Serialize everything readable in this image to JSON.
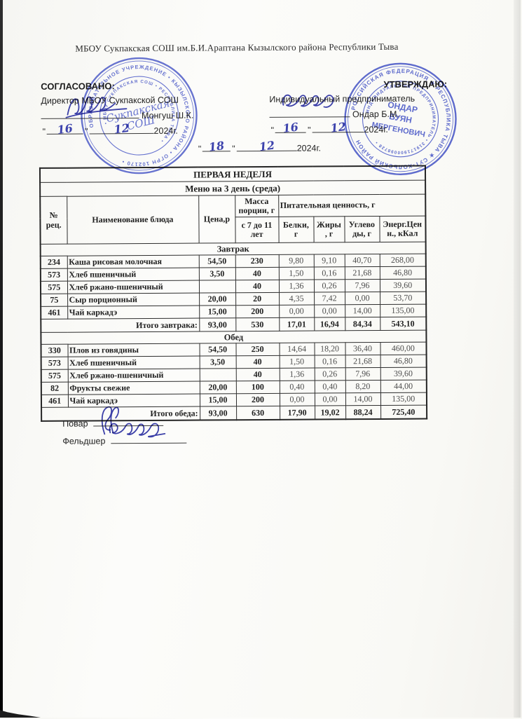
{
  "glyphs": {
    "quote": "\""
  },
  "document": {
    "school_header": "МБОУ Сукпакская СОШ им.Б.И.Араптана Кызылского района Республики Тыва",
    "agreed": {
      "title": "СОГЛАСОВАНО:",
      "role": "Директор МБОУ Сукпакской СОШ",
      "signer": "Монгуш Ш.К.",
      "date_day": "16",
      "date_month": "12",
      "date_year": "2024г."
    },
    "approved": {
      "title": "УТВЕРЖДАЮ:",
      "role": "Индивидуальный предприниматель",
      "signer": "Ондар Б.М.",
      "date_day": "16",
      "date_month": "12",
      "date_year": "2024г."
    },
    "center_date": {
      "day": "18",
      "month": "12",
      "year": "2024г."
    },
    "footer": {
      "cook_label": "Повар",
      "feldsher_label": "Фельдшер"
    }
  },
  "stamps": {
    "left": {
      "outer_ring": "ОБРАЗОВАТЕЛЬНОЕ УЧРЕЖДЕНИЕ • КЫЗЫЛСКОГО РАЙОНА • ОГРН 102170 •",
      "inner_ring": "• МБОУ СУКПАКСКАЯ СОШ • РЕСПУБЛИКА ТЫВА •",
      "center_line1": "Сукпакская",
      "center_line2": "СОШ"
    },
    "right": {
      "outer_ring": "РОССИЙСКАЯ ФЕДЕРАЦИЯ ★ РЕСПУБЛИКА ТЫВА ★ СУТ-ХОЛЬСКИЙ РАЙОН",
      "inner_ring": "ИНДИВИДУАЛЬНЫЙ ПРЕДПРИНИМАТЕЛЬ • 319171900098728 •",
      "center_line1": "ОНДАР",
      "center_line2": "БУЯН",
      "center_line3": "МЕРГЕНОВИЧ"
    }
  },
  "table": {
    "week_title": "ПЕРВАЯ НЕДЕЛЯ",
    "menu_title": "Меню на 3 день (среда)",
    "headers": {
      "rec": "№\nрец.",
      "dish": "Наименование блюда",
      "price": "Цена,р",
      "mass_group": "Масса\nпорции, г",
      "mass_sub": "с 7 до 11\nлет",
      "nutrition_group": "Питательная ценность, г",
      "protein": "Белки,\nг",
      "fat": "Жиры\n, г",
      "carbs": "Углево\nды, г",
      "energy": "Энерг.Цен\nн., кКал"
    },
    "sections": [
      {
        "name": "Завтрак",
        "rows": [
          {
            "rec": "234",
            "dish": "Каша рисовая молочная",
            "price": "54,50",
            "mass": "230",
            "protein": "9,80",
            "fat": "9,10",
            "carbs": "40,70",
            "energy": "268,00"
          },
          {
            "rec": "573",
            "dish": "Хлеб пшеничный",
            "price": "3,50",
            "mass": "40",
            "protein": "1,50",
            "fat": "0,16",
            "carbs": "21,68",
            "energy": "46,80"
          },
          {
            "rec": "575",
            "dish": "Хлеб ржано-пшеничный",
            "price": "",
            "mass": "40",
            "protein": "1,36",
            "fat": "0,26",
            "carbs": "7,96",
            "energy": "39,60"
          },
          {
            "rec": "75",
            "dish": "Сыр порционный",
            "price": "20,00",
            "mass": "20",
            "protein": "4,35",
            "fat": "7,42",
            "carbs": "0,00",
            "energy": "53,70"
          },
          {
            "rec": "461",
            "dish": "Чай каркадэ",
            "price": "15,00",
            "mass": "200",
            "protein": "0,00",
            "fat": "0,00",
            "carbs": "14,00",
            "energy": "135,00"
          }
        ],
        "total": {
          "label": "Итого завтрака:",
          "price": "93,00",
          "mass": "530",
          "protein": "17,01",
          "fat": "16,94",
          "carbs": "84,34",
          "energy": "543,10"
        }
      },
      {
        "name": "Обед",
        "rows": [
          {
            "rec": "330",
            "dish": "Плов из говядины",
            "price": "54,50",
            "mass": "250",
            "protein": "14,64",
            "fat": "18,20",
            "carbs": "36,40",
            "energy": "460,00"
          },
          {
            "rec": "573",
            "dish": "Хлеб пшеничный",
            "price": "3,50",
            "mass": "40",
            "protein": "1,50",
            "fat": "0,16",
            "carbs": "21,68",
            "energy": "46,80"
          },
          {
            "rec": "575",
            "dish": "Хлеб ржано-пшеничный",
            "price": "",
            "mass": "40",
            "protein": "1,36",
            "fat": "0,26",
            "carbs": "7,96",
            "energy": "39,60"
          },
          {
            "rec": "82",
            "dish": "Фрукты свежие",
            "price": "20,00",
            "mass": "100",
            "protein": "0,40",
            "fat": "0,40",
            "carbs": "8,20",
            "energy": "44,00"
          },
          {
            "rec": "461",
            "dish": "Чай каркадэ",
            "price": "15,00",
            "mass": "200",
            "protein": "0,00",
            "fat": "0,00",
            "carbs": "14,00",
            "energy": "135,00"
          }
        ],
        "total": {
          "label": "Итого обеда:",
          "price": "93,00",
          "mass": "630",
          "protein": "17,90",
          "fat": "19,02",
          "carbs": "88,24",
          "energy": "725,40"
        }
      }
    ]
  }
}
